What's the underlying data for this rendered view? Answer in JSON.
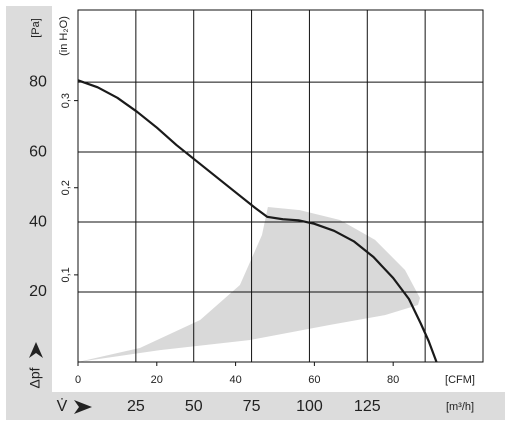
{
  "chart_data": {
    "type": "line",
    "y_label": "[Pa]",
    "y2_label": "(in H₂O)",
    "y_symbol": "Δpf",
    "x_label": "[CFM]",
    "x2_label": "[m³/h]",
    "x2_symbol": "V̇",
    "x": [
      0,
      5,
      10,
      15,
      20,
      25,
      30,
      35,
      40,
      45,
      48,
      52,
      56,
      60,
      65,
      70,
      75,
      80,
      84,
      87,
      89,
      91
    ],
    "series": [
      {
        "color": "#1a1a1a",
        "values": [
          80.5,
          78.5,
          75.5,
          71.5,
          67,
          62,
          57.5,
          53,
          48.5,
          44,
          41.5,
          40.8,
          40.5,
          39.5,
          37.5,
          34.5,
          30,
          24,
          18,
          11,
          6,
          0
        ]
      }
    ],
    "region": {
      "color": "#d9d9d9",
      "x": [
        0,
        20.8,
        43.7,
        64,
        77.9,
        86.3,
        86.8,
        83,
        75.4,
        66.5,
        56.3,
        48.2,
        46.7,
        41.1,
        31,
        15.7
      ],
      "y": [
        0,
        3.4,
        6.3,
        10.6,
        13.4,
        16.3,
        18.3,
        26.3,
        34.9,
        40.6,
        43.4,
        44.3,
        36.3,
        22,
        12,
        4
      ]
    },
    "xlim": [
      0,
      102.8
    ],
    "xticks": [
      0,
      20,
      40,
      60,
      80
    ],
    "x2lim": [
      0,
      175
    ],
    "x2ticks": [
      25,
      50,
      75,
      100,
      125
    ],
    "x2_gridlines": [
      25,
      50,
      75,
      100,
      125,
      150
    ],
    "ylim": [
      0,
      100.6
    ],
    "yticks": [
      20,
      40,
      60,
      80
    ],
    "y2lim": [
      0,
      0.404
    ],
    "y2ticks": [
      {
        "value": 0.1,
        "label": "0,1"
      },
      {
        "value": 0.2,
        "label": "0,2"
      },
      {
        "value": 0.3,
        "label": "0,3"
      }
    ],
    "grid": true
  }
}
